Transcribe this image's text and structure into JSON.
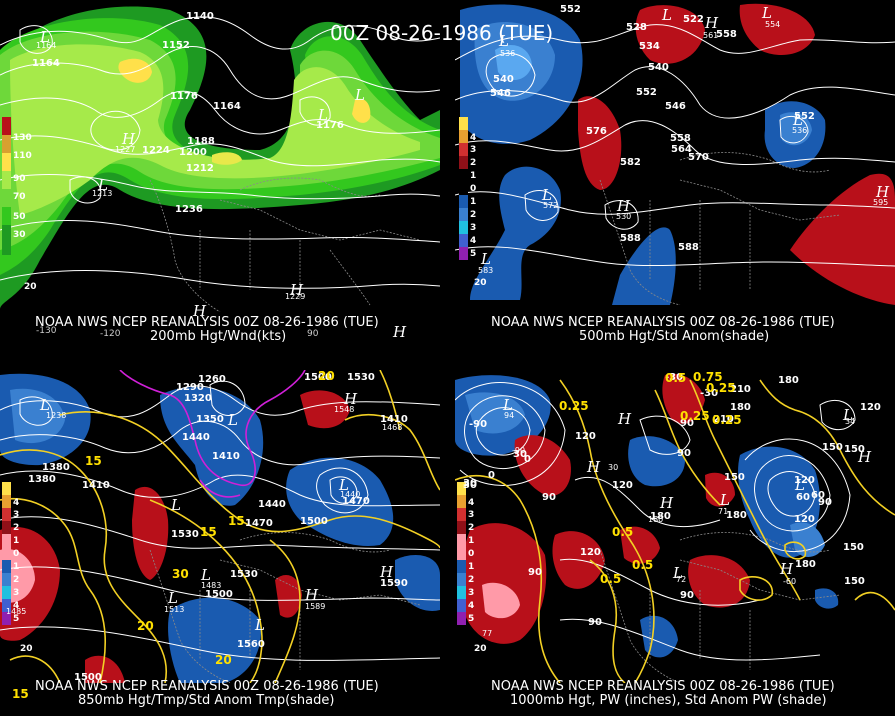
{
  "title": "00Z 08-26-1986 (TUE)",
  "colors": {
    "background": "#000000",
    "wind_light": "#33c81e",
    "wind_mid": "#85e63a",
    "wind_high": "#c8f050",
    "wind_max": "#ffe04a",
    "anom_pos": "#b8101a",
    "anom_pos_strong": "#ff9aa8",
    "anom_neg": "#1a5bb0",
    "anom_neg_strong": "#4a9be0",
    "contour": "#ffffff",
    "temp_contour": "#f2d024",
    "cold_contour": "#d020d8"
  },
  "panels": [
    {
      "id": "p1",
      "caption1": "NOAA NWS NCEP REANALYSIS 00Z 08-26-1986 (TUE)",
      "caption2": "200mb Hgt/Wnd(kts)",
      "legend": [
        "130",
        "110",
        "90",
        "70",
        "50",
        "30"
      ],
      "labels": [
        "1140",
        "1152",
        "1164",
        "1176",
        "1164",
        "1188",
        "1200",
        "1212",
        "1224",
        "1236",
        "1176",
        "1164",
        "1227",
        "1213",
        "1229"
      ],
      "centers": [
        "L",
        "L",
        "H",
        "L",
        "L",
        "H",
        "H",
        "H"
      ],
      "lons": [
        "-130",
        "-120",
        "90"
      ],
      "corner": "20"
    },
    {
      "id": "p2",
      "caption1": "NOAA NWS NCEP REANALYSIS 00Z 08-26-1986 (TUE)",
      "caption2": "500mb Hgt/Std Anom(shade)",
      "legend": [
        "4",
        "3",
        "2",
        "1",
        "0",
        "1",
        "2",
        "3",
        "4",
        "5"
      ],
      "labels": [
        "552",
        "528",
        "522",
        "540",
        "534",
        "558",
        "540",
        "546",
        "552",
        "546",
        "576",
        "558",
        "564",
        "570",
        "582",
        "552",
        "588",
        "588",
        "536",
        "572",
        "536",
        "530",
        "583",
        "595",
        "554",
        "561"
      ],
      "centers": [
        "L",
        "L",
        "H",
        "L",
        "L",
        "L",
        "H",
        "L",
        "H"
      ],
      "corner": "20"
    },
    {
      "id": "p3",
      "caption1": "NOAA NWS NCEP REANALYSIS 00Z 08-26-1986 (TUE)",
      "caption2": "850mb Hgt/Tmp/Std Anom Tmp(shade)",
      "legend": [
        "4",
        "3",
        "2",
        "1",
        "0",
        "1",
        "2",
        "3",
        "4",
        "5"
      ],
      "labels": [
        "1260",
        "1290",
        "1320",
        "1350",
        "1440",
        "1410",
        "1380",
        "1410",
        "1440",
        "1470",
        "1500",
        "1530",
        "1500",
        "1530",
        "1560",
        "1590",
        "1500",
        "1530",
        "1470",
        "1500",
        "1380",
        "1410",
        "1238",
        "1548",
        "1468",
        "1440",
        "1483",
        "1513",
        "1485",
        "1589"
      ],
      "temps": [
        "15",
        "30",
        "15",
        "20",
        "20",
        "15",
        "20",
        "15"
      ],
      "centers": [
        "L",
        "L",
        "H",
        "L",
        "L",
        "L",
        "L",
        "L",
        "H",
        "H"
      ],
      "corner": "20"
    },
    {
      "id": "p4",
      "caption1": "NOAA NWS NCEP REANALYSIS 00Z 08-26-1986 (TUE)",
      "caption2": "1000mb Hgt, PW (inches), Std Anom PW (shade)",
      "legend": [
        "4",
        "3",
        "2",
        "1",
        "0",
        "1",
        "2",
        "3",
        "4",
        "5"
      ],
      "labels": [
        "-30",
        "-90",
        "30",
        "0",
        "90",
        "150",
        "120",
        "60",
        "90",
        "120",
        "180",
        "150",
        "120",
        "90",
        "90",
        "90",
        "180",
        "180",
        "-30",
        "210",
        "180",
        "180",
        "150",
        "120",
        "90",
        "60",
        "150",
        "210",
        "120",
        "30",
        "30",
        "0",
        "120",
        "90",
        "150",
        "34",
        "30",
        "180",
        "94",
        "71",
        "77",
        "72",
        "-60",
        "-90"
      ],
      "pw": [
        "0.25",
        "0.25",
        "0.25",
        "0.25",
        "0.5",
        "0.5",
        "0.5",
        "0.5",
        "0.75"
      ],
      "centers": [
        "L",
        "H",
        "L",
        "H",
        "L",
        "H",
        "L",
        "L",
        "H",
        "H"
      ],
      "corner": "20"
    }
  ]
}
